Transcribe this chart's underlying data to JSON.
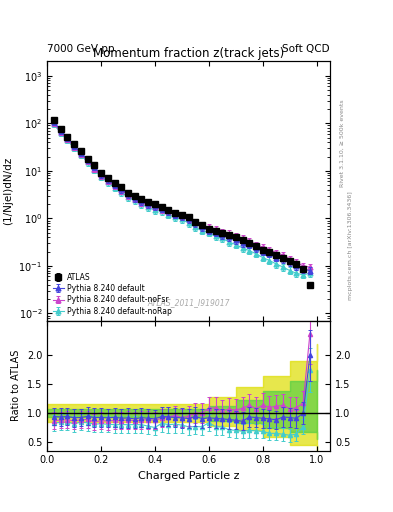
{
  "title": "Momentum fraction z(track jets)",
  "top_left_label": "7000 GeV pp",
  "top_right_label": "Soft QCD",
  "right_label1": "Rivet 3.1.10, ≥ 500k events",
  "right_label2": "mcplots.cern.ch [arXiv:1306.3436]",
  "watermark": "ATLAS_2011_I919017",
  "xlabel": "Charged Particle z",
  "ylabel_main": "(1/Njel)dN/dz",
  "ylabel_ratio": "Ratio to ATLAS",
  "xlim": [
    0.0,
    1.05
  ],
  "ylim_main": [
    0.007,
    2000
  ],
  "ylim_ratio": [
    0.35,
    2.6
  ],
  "ratio_yticks": [
    0.5,
    1.0,
    1.5,
    2.0
  ],
  "atlas_color": "#000000",
  "blue_color": "#4444dd",
  "magenta_color": "#cc44cc",
  "cyan_color": "#44cccc",
  "green_band_color": "#44cc44",
  "yellow_band_color": "#dddd00",
  "atlas_x": [
    0.025,
    0.05,
    0.075,
    0.1,
    0.125,
    0.15,
    0.175,
    0.2,
    0.225,
    0.25,
    0.275,
    0.3,
    0.325,
    0.35,
    0.375,
    0.4,
    0.425,
    0.45,
    0.475,
    0.5,
    0.525,
    0.55,
    0.575,
    0.6,
    0.625,
    0.65,
    0.675,
    0.7,
    0.725,
    0.75,
    0.775,
    0.8,
    0.825,
    0.85,
    0.875,
    0.9,
    0.925,
    0.95,
    0.975
  ],
  "atlas_y": [
    115,
    75,
    52,
    37,
    26,
    18,
    13,
    9.2,
    7.2,
    5.5,
    4.5,
    3.5,
    3.0,
    2.5,
    2.2,
    2.0,
    1.7,
    1.5,
    1.3,
    1.2,
    1.05,
    0.85,
    0.72,
    0.6,
    0.55,
    0.5,
    0.45,
    0.4,
    0.35,
    0.3,
    0.26,
    0.22,
    0.2,
    0.17,
    0.15,
    0.13,
    0.11,
    0.085,
    0.04
  ],
  "atlas_ey": [
    10,
    6,
    4.2,
    3.0,
    2.1,
    1.4,
    1.05,
    0.74,
    0.58,
    0.44,
    0.36,
    0.28,
    0.24,
    0.2,
    0.18,
    0.16,
    0.14,
    0.12,
    0.1,
    0.096,
    0.084,
    0.068,
    0.058,
    0.048,
    0.044,
    0.04,
    0.036,
    0.032,
    0.028,
    0.024,
    0.021,
    0.018,
    0.016,
    0.014,
    0.012,
    0.01,
    0.009,
    0.007,
    0.006
  ],
  "blue_x": [
    0.025,
    0.05,
    0.075,
    0.1,
    0.125,
    0.15,
    0.175,
    0.2,
    0.225,
    0.25,
    0.275,
    0.3,
    0.325,
    0.35,
    0.375,
    0.4,
    0.425,
    0.45,
    0.475,
    0.5,
    0.525,
    0.55,
    0.575,
    0.6,
    0.625,
    0.65,
    0.675,
    0.7,
    0.725,
    0.75,
    0.775,
    0.8,
    0.825,
    0.85,
    0.875,
    0.9,
    0.925,
    0.95,
    0.975
  ],
  "blue_y": [
    108,
    70,
    49,
    34,
    24,
    17,
    12,
    8.5,
    6.6,
    5.1,
    4.1,
    3.2,
    2.7,
    2.3,
    2.0,
    1.8,
    1.6,
    1.4,
    1.2,
    1.1,
    0.95,
    0.8,
    0.65,
    0.55,
    0.5,
    0.45,
    0.4,
    0.35,
    0.3,
    0.28,
    0.24,
    0.2,
    0.18,
    0.15,
    0.14,
    0.12,
    0.1,
    0.085,
    0.08
  ],
  "blue_ey": [
    15,
    10,
    7,
    5,
    3.5,
    2.5,
    1.8,
    1.3,
    1.0,
    0.8,
    0.65,
    0.52,
    0.44,
    0.37,
    0.32,
    0.29,
    0.26,
    0.22,
    0.19,
    0.18,
    0.15,
    0.13,
    0.11,
    0.089,
    0.081,
    0.073,
    0.065,
    0.057,
    0.049,
    0.045,
    0.039,
    0.032,
    0.029,
    0.024,
    0.023,
    0.019,
    0.016,
    0.014,
    0.013
  ],
  "mag_x": [
    0.025,
    0.05,
    0.075,
    0.1,
    0.125,
    0.15,
    0.175,
    0.2,
    0.225,
    0.25,
    0.275,
    0.3,
    0.325,
    0.35,
    0.375,
    0.4,
    0.425,
    0.45,
    0.475,
    0.5,
    0.525,
    0.55,
    0.575,
    0.6,
    0.625,
    0.65,
    0.675,
    0.7,
    0.725,
    0.75,
    0.775,
    0.8,
    0.825,
    0.85,
    0.875,
    0.9,
    0.925,
    0.95,
    0.975
  ],
  "mag_y": [
    100,
    66,
    46,
    32,
    23,
    16,
    11,
    8.0,
    6.2,
    4.8,
    3.9,
    3.1,
    2.6,
    2.2,
    1.95,
    1.75,
    1.55,
    1.4,
    1.25,
    1.1,
    1.0,
    0.85,
    0.72,
    0.65,
    0.6,
    0.52,
    0.48,
    0.42,
    0.38,
    0.34,
    0.28,
    0.25,
    0.22,
    0.19,
    0.17,
    0.14,
    0.12,
    0.1,
    0.095
  ],
  "mag_ey": [
    14,
    9,
    6.5,
    4.7,
    3.3,
    2.3,
    1.65,
    1.2,
    0.95,
    0.74,
    0.6,
    0.48,
    0.4,
    0.34,
    0.3,
    0.27,
    0.24,
    0.22,
    0.19,
    0.17,
    0.16,
    0.13,
    0.11,
    0.1,
    0.096,
    0.083,
    0.077,
    0.067,
    0.061,
    0.055,
    0.045,
    0.04,
    0.035,
    0.031,
    0.027,
    0.023,
    0.019,
    0.016,
    0.015
  ],
  "cyan_x": [
    0.025,
    0.05,
    0.075,
    0.1,
    0.125,
    0.15,
    0.175,
    0.2,
    0.225,
    0.25,
    0.275,
    0.3,
    0.325,
    0.35,
    0.375,
    0.4,
    0.425,
    0.45,
    0.475,
    0.5,
    0.525,
    0.55,
    0.575,
    0.6,
    0.625,
    0.65,
    0.675,
    0.7,
    0.725,
    0.75,
    0.775,
    0.8,
    0.825,
    0.85,
    0.875,
    0.9,
    0.925,
    0.95,
    0.975
  ],
  "cyan_y": [
    95,
    63,
    44,
    30,
    22,
    15,
    10.5,
    7.5,
    5.8,
    4.4,
    3.6,
    2.8,
    2.4,
    2.0,
    1.7,
    1.5,
    1.4,
    1.2,
    1.05,
    0.95,
    0.8,
    0.65,
    0.55,
    0.5,
    0.42,
    0.38,
    0.32,
    0.28,
    0.24,
    0.21,
    0.18,
    0.15,
    0.13,
    0.11,
    0.095,
    0.08,
    0.07,
    0.065,
    0.07
  ],
  "cyan_ey": [
    13,
    9,
    6.3,
    4.4,
    3.1,
    2.2,
    1.6,
    1.15,
    0.9,
    0.71,
    0.58,
    0.45,
    0.38,
    0.32,
    0.28,
    0.24,
    0.22,
    0.19,
    0.17,
    0.15,
    0.13,
    0.1,
    0.088,
    0.081,
    0.068,
    0.061,
    0.052,
    0.045,
    0.039,
    0.034,
    0.029,
    0.024,
    0.021,
    0.018,
    0.015,
    0.013,
    0.011,
    0.01,
    0.011
  ],
  "band_x": [
    0.0,
    0.05,
    0.1,
    0.2,
    0.3,
    0.4,
    0.5,
    0.6,
    0.7,
    0.8,
    0.9,
    1.0
  ],
  "green_lo": [
    0.93,
    0.93,
    0.93,
    0.93,
    0.93,
    0.93,
    0.93,
    0.87,
    0.82,
    0.75,
    0.68,
    0.55
  ],
  "green_hi": [
    1.07,
    1.07,
    1.07,
    1.07,
    1.07,
    1.07,
    1.07,
    1.13,
    1.22,
    1.38,
    1.55,
    1.75
  ],
  "yellow_lo": [
    0.85,
    0.85,
    0.85,
    0.85,
    0.85,
    0.85,
    0.85,
    0.78,
    0.7,
    0.58,
    0.45,
    0.32
  ],
  "yellow_hi": [
    1.15,
    1.15,
    1.15,
    1.15,
    1.15,
    1.15,
    1.15,
    1.28,
    1.45,
    1.65,
    1.9,
    2.2
  ]
}
